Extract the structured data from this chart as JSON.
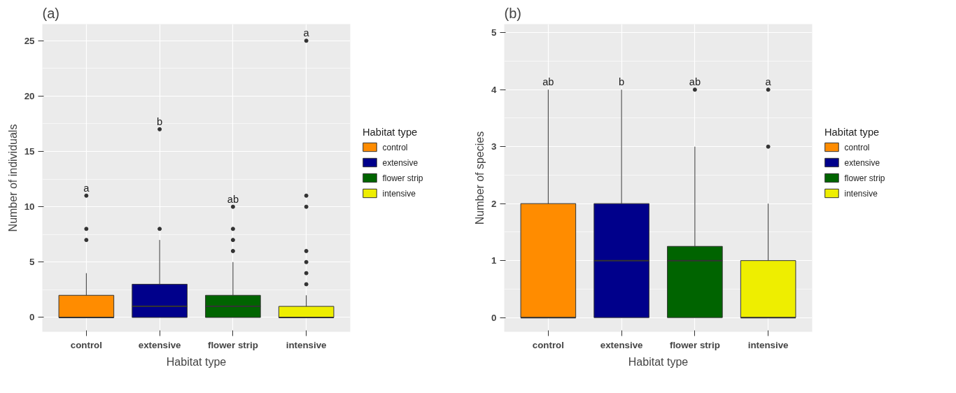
{
  "chart_data": [
    {
      "type": "box",
      "title": "(a)",
      "xlabel": "Habitat type",
      "ylabel": "Number of individuals",
      "legend_title": "Habitat type",
      "categories": [
        "control",
        "extensive",
        "flower strip",
        "intensive"
      ],
      "series": [
        {
          "name": "control",
          "color": "#ff8c00",
          "boxes": [
            {
              "low": 0,
              "q1": 0,
              "median": 0,
              "q3": 2,
              "high": 4,
              "outliers": [
                7,
                8,
                11
              ]
            },
            null,
            null,
            null
          ]
        },
        {
          "name": "extensive",
          "color": "#00008b",
          "boxes": [
            null,
            {
              "low": 0,
              "q1": 0,
              "median": 1,
              "q3": 3,
              "high": 7,
              "outliers": [
                8,
                17
              ]
            },
            null,
            null
          ]
        },
        {
          "name": "flower strip",
          "color": "#006400",
          "boxes": [
            null,
            null,
            {
              "low": 0,
              "q1": 0,
              "median": 1,
              "q3": 2,
              "high": 5,
              "outliers": [
                6,
                7,
                8,
                10
              ]
            },
            null
          ]
        },
        {
          "name": "intensive",
          "color": "#eeee00",
          "boxes": [
            null,
            null,
            null,
            {
              "low": 0,
              "q1": 0,
              "median": 0,
              "q3": 1,
              "high": 2,
              "outliers": [
                3,
                4,
                5,
                6,
                10,
                11,
                25
              ]
            }
          ]
        }
      ],
      "ylim": [
        -1.3,
        26.5
      ],
      "yticks": [
        0,
        5,
        10,
        15,
        20,
        25
      ],
      "grid": true,
      "legend": "right",
      "annotations": [
        "a",
        "b",
        "ab",
        "a"
      ]
    },
    {
      "type": "box",
      "title": "(b)",
      "xlabel": "Habitat type",
      "ylabel": "Number of species",
      "legend_title": "Habitat type",
      "categories": [
        "control",
        "extensive",
        "flower strip",
        "intensive"
      ],
      "series": [
        {
          "name": "control",
          "color": "#ff8c00",
          "boxes": [
            {
              "low": 0,
              "q1": 0,
              "median": 0,
              "q3": 2,
              "high": 4
            },
            null,
            null,
            null
          ]
        },
        {
          "name": "extensive",
          "color": "#00008b",
          "boxes": [
            null,
            {
              "low": 0,
              "q1": 0,
              "median": 1,
              "q3": 2,
              "high": 4
            },
            null,
            null
          ]
        },
        {
          "name": "flower strip",
          "color": "#006400",
          "boxes": [
            null,
            null,
            {
              "low": 0,
              "q1": 0,
              "median": 1,
              "q3": 1.25,
              "high": 3,
              "outliers": [
                4
              ]
            },
            null
          ]
        },
        {
          "name": "intensive",
          "color": "#eeee00",
          "boxes": [
            null,
            null,
            null,
            {
              "low": 0,
              "q1": 0,
              "median": 0,
              "q3": 1,
              "high": 2,
              "outliers": [
                3,
                4
              ]
            }
          ]
        }
      ],
      "ylim": [
        -0.25,
        5.15
      ],
      "yticks": [
        0,
        1,
        2,
        3,
        4,
        5
      ],
      "grid": true,
      "legend": "right",
      "annotations": [
        "ab",
        "b",
        "ab",
        "a"
      ]
    }
  ]
}
